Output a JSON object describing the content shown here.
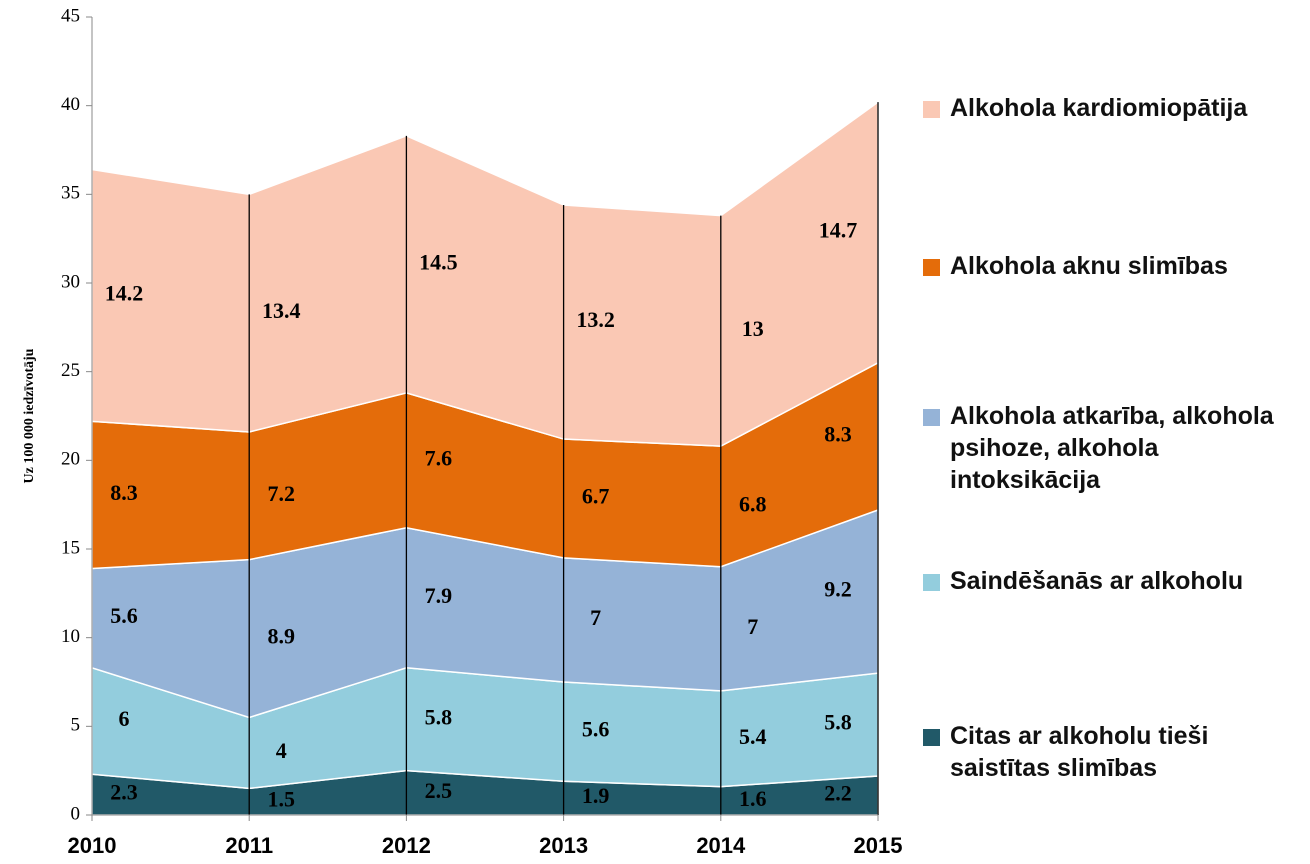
{
  "chart_data": {
    "type": "stacked_area",
    "y_label": "Uz 100 000 iedzīvotāju",
    "categories": [
      "2010",
      "2011",
      "2012",
      "2013",
      "2014",
      "2015"
    ],
    "ylim": [
      0,
      45
    ],
    "yticks": [
      0,
      5,
      10,
      15,
      20,
      25,
      30,
      35,
      40,
      45
    ],
    "series": [
      {
        "name": "Citas ar alkoholu tieši saistītas slimības",
        "color": "#215968",
        "values": [
          2.3,
          1.5,
          2.5,
          1.9,
          1.6,
          2.2
        ]
      },
      {
        "name": "Saindēšanās ar alkoholu",
        "color": "#93cddd",
        "values": [
          6,
          4,
          5.8,
          5.6,
          5.4,
          5.8
        ]
      },
      {
        "name": "Alkohola atkarība, alkohola psihoze, alkohola intoksikācija",
        "color": "#95b3d7",
        "values": [
          5.6,
          8.9,
          7.9,
          7,
          7,
          9.2
        ]
      },
      {
        "name": "Alkohola aknu slimības",
        "color": "#e46c0a",
        "values": [
          8.3,
          7.2,
          7.6,
          6.7,
          6.8,
          8.3
        ]
      },
      {
        "name": "Alkohola kardiomiopātija",
        "color": "#fac8b4",
        "values": [
          14.2,
          13.4,
          14.5,
          13.2,
          13,
          14.7
        ]
      }
    ]
  }
}
